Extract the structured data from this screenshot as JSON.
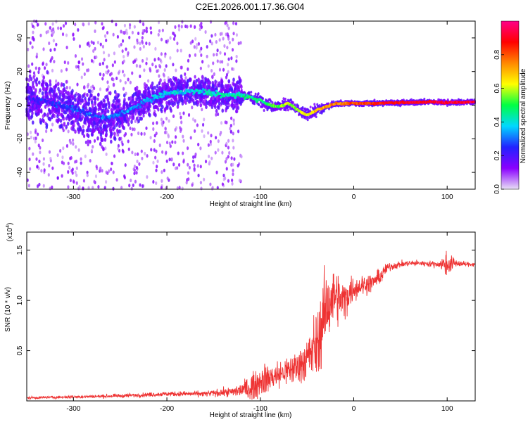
{
  "title": "C2E1.2026.001.17.36.G04",
  "chart_data": [
    {
      "type": "heatmap",
      "xlabel": "Height of straight line (km)",
      "ylabel": "Frequency (Hz)",
      "xlim": [
        -350,
        130
      ],
      "ylim": [
        -50,
        50
      ],
      "xticks": [
        -300,
        -200,
        -100,
        0,
        100
      ],
      "xtick_labels": [
        "-300",
        "-200",
        "-100",
        "0",
        "100"
      ],
      "yticks": [
        -40,
        -20,
        0,
        20,
        40
      ],
      "ytick_labels": [
        "-40",
        "-20",
        "0",
        "20",
        "40"
      ],
      "colorbar": {
        "label": "Normalized spectral amplitude",
        "range": [
          0,
          1
        ],
        "ticks": [
          0.0,
          0.2,
          0.4,
          0.6,
          0.8
        ],
        "tick_labels": [
          "0.0",
          "0.2",
          "0.4",
          "0.6",
          "0.8"
        ],
        "colors": [
          "#e8e0f5",
          "#8a00ff",
          "#2222ff",
          "#00d8ff",
          "#00ff44",
          "#ffff00",
          "#ff8800",
          "#ff0000",
          "#ff0088"
        ]
      },
      "ridge": {
        "x": [
          -350,
          -330,
          -300,
          -280,
          -265,
          -240,
          -220,
          -200,
          -180,
          -160,
          -140,
          -120,
          -100,
          -90,
          -80,
          -70,
          -60,
          -50,
          -40,
          -30,
          -20,
          -10,
          0,
          20,
          40,
          60,
          80,
          100,
          130
        ],
        "y": [
          4,
          2,
          -2,
          -6,
          -8,
          -3,
          3,
          7,
          8,
          8,
          6,
          6,
          3,
          0,
          -1,
          1,
          -3,
          -6,
          -3,
          -1,
          1,
          1,
          1,
          1,
          1.5,
          1.5,
          2,
          1.5,
          2
        ],
        "amplitude": [
          0.2,
          0.22,
          0.25,
          0.28,
          0.3,
          0.32,
          0.35,
          0.38,
          0.38,
          0.4,
          0.42,
          0.45,
          0.48,
          0.5,
          0.55,
          0.6,
          0.58,
          0.62,
          0.7,
          0.72,
          0.75,
          0.78,
          0.8,
          0.85,
          0.88,
          0.9,
          0.9,
          0.92,
          0.92
        ]
      }
    },
    {
      "type": "line",
      "xlabel": "Height of straight line (km)",
      "ylabel": "SNR (10 * v/v)",
      "y_scale_label": "(x10",
      "y_scale_exponent": "4",
      "y_scale_suffix": ")",
      "xlim": [
        -350,
        130
      ],
      "ylim": [
        0,
        16800
      ],
      "xticks": [
        -300,
        -200,
        -100,
        0,
        100
      ],
      "xtick_labels": [
        "-300",
        "-200",
        "-100",
        "0",
        "100"
      ],
      "yticks": [
        5000,
        10000,
        15000
      ],
      "ytick_labels": [
        "0.5",
        "1.0",
        "1.5"
      ],
      "series": [
        {
          "name": "SNR",
          "color": "#ee3333",
          "x": [
            -350,
            -300,
            -250,
            -200,
            -160,
            -130,
            -110,
            -100,
            -90,
            -80,
            -70,
            -60,
            -50,
            -40,
            -35,
            -30,
            -25,
            -20,
            -15,
            -10,
            -5,
            0,
            10,
            20,
            30,
            35,
            40,
            50,
            60,
            70,
            80,
            90,
            100,
            110,
            120,
            130
          ],
          "y": [
            300,
            400,
            500,
            700,
            700,
            900,
            1300,
            2000,
            2300,
            2600,
            3000,
            3400,
            4200,
            5500,
            7200,
            9000,
            10000,
            10500,
            10000,
            10000,
            10800,
            11200,
            11500,
            11800,
            12500,
            13200,
            13400,
            13600,
            13700,
            13700,
            13650,
            13600,
            13600,
            13700,
            13600,
            13600
          ],
          "noise": [
            150,
            150,
            200,
            250,
            300,
            500,
            1300,
            1600,
            1600,
            1500,
            1600,
            1800,
            2500,
            3500,
            4000,
            4000,
            3500,
            3000,
            2500,
            2200,
            1800,
            1300,
            1100,
            900,
            800,
            600,
            450,
            350,
            300,
            300,
            300,
            350,
            1300,
            400,
            250,
            250
          ]
        }
      ]
    }
  ]
}
